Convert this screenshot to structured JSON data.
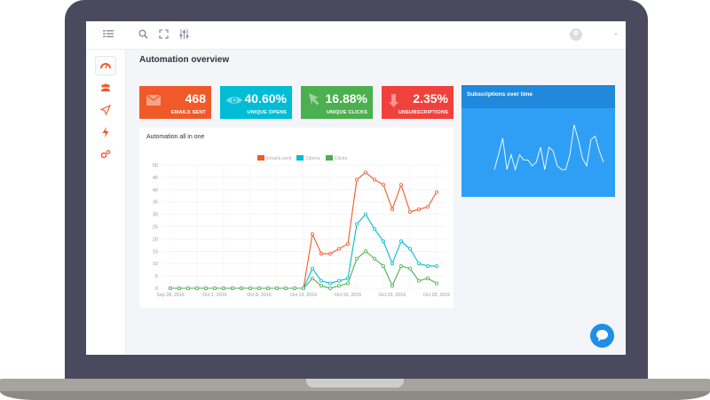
{
  "page": {
    "title": "Automation overview"
  },
  "topbar": {
    "icons": [
      "menu-icon",
      "search-icon",
      "fullscreen-icon",
      "sliders-icon"
    ],
    "caret": "⌄"
  },
  "sidebar": {
    "items": [
      {
        "name": "dashboard-icon",
        "active": true,
        "color": "#f05a28"
      },
      {
        "name": "users-icon",
        "color": "#f05a28"
      },
      {
        "name": "send-icon",
        "color": "#f05a28"
      },
      {
        "name": "lightning-icon",
        "color": "#f05a28"
      },
      {
        "name": "settings-icon",
        "color": "#f05a28"
      }
    ]
  },
  "stats": [
    {
      "value": "468",
      "label": "EMAILS SENT",
      "color": "#f05a28",
      "icon": "envelope-icon"
    },
    {
      "value": "40.60%",
      "label": "UNIQUE OPENS",
      "color": "#00bcd4",
      "icon": "eye-icon"
    },
    {
      "value": "16.88%",
      "label": "UNIQUE CLICKS",
      "color": "#4caf50",
      "icon": "cursor-icon"
    },
    {
      "value": "2.35%",
      "label": "UNSUBSCRIPTIONS",
      "color": "#f0413c",
      "icon": "arrow-down-icon"
    }
  ],
  "chart_data": [
    {
      "type": "line",
      "title": "Automation all in one",
      "ylim": [
        0,
        50
      ],
      "yticks": [
        0,
        5,
        10,
        15,
        20,
        25,
        30,
        35,
        40,
        45,
        50
      ],
      "xtick_labels": [
        "Sep 28, 2016",
        "Oct 1, 2016",
        "Oct 8, 2016",
        "Oct 13, 2016",
        "Oct 16, 2016",
        "Oct 23, 2016",
        "Oct 28, 2016"
      ],
      "grid": true,
      "legend_position": "top",
      "series": [
        {
          "name": "Emails sent",
          "color": "#f05a28",
          "values": [
            0,
            0,
            0,
            0,
            0,
            0,
            0,
            0,
            0,
            0,
            0,
            0,
            0,
            0,
            0,
            0,
            22,
            14,
            14,
            16,
            18,
            44,
            47,
            44,
            42,
            32,
            42,
            31,
            32,
            33,
            39
          ]
        },
        {
          "name": "Opens",
          "color": "#00bcd4",
          "values": [
            0,
            0,
            0,
            0,
            0,
            0,
            0,
            0,
            0,
            0,
            0,
            0,
            0,
            0,
            0,
            0,
            8,
            3,
            2,
            3,
            4,
            26,
            30,
            24,
            19,
            10,
            19,
            16,
            10,
            9,
            9
          ]
        },
        {
          "name": "Clicks",
          "color": "#4caf50",
          "values": [
            0,
            0,
            0,
            0,
            0,
            0,
            0,
            0,
            0,
            0,
            0,
            0,
            0,
            0,
            0,
            0,
            4,
            1,
            0,
            1,
            2,
            12,
            15,
            12,
            9,
            1,
            9,
            8,
            3,
            4,
            2
          ]
        }
      ]
    },
    {
      "type": "line",
      "title": "Subscriptions over time",
      "ylim": [
        0,
        100
      ],
      "series": [
        {
          "color": "#ffffff",
          "values": [
            20,
            40,
            62,
            20,
            40,
            20,
            40,
            33,
            33,
            25,
            30,
            50,
            20,
            50,
            45,
            25,
            20,
            20,
            40,
            80,
            60,
            35,
            25,
            60,
            65,
            45,
            30
          ]
        }
      ]
    }
  ],
  "chat": {
    "icon": "chat-bubble-icon"
  }
}
